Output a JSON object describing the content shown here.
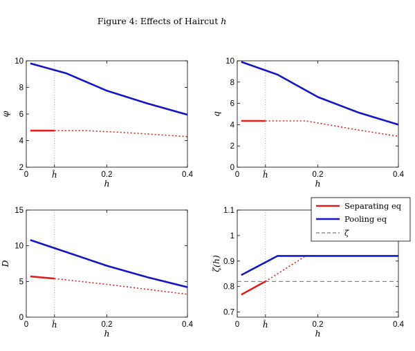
{
  "figure": {
    "title_prefix": "Figure 4: Effects of Haircut ",
    "title_var": "h"
  },
  "colors": {
    "red": "#e11e1e",
    "blue": "#1414c8",
    "dashed": "#555555",
    "dotted": "#888888",
    "axis": "#000000"
  },
  "legend": {
    "entries": [
      {
        "label": "Separating eq",
        "color": "#e11e1e",
        "style": "solid"
      },
      {
        "label": "Pooling eq",
        "color": "#1414c8",
        "style": "solid"
      },
      {
        "label": "− − ζ̄",
        "symbol": "ζ̄",
        "color": "#555555",
        "style": "dashed"
      }
    ]
  },
  "chart_data": [
    {
      "type": "line",
      "ylabel": "φ",
      "xlabel": "h",
      "xlim": [
        0,
        0.4
      ],
      "ylim": [
        2,
        10
      ],
      "xticks": [
        0,
        0.2,
        0.4
      ],
      "xticklabels": [
        "0",
        "0.2",
        "0.4"
      ],
      "hat_x": 0.07,
      "hat_label": "ĥ",
      "yticks": [
        2,
        4,
        6,
        8,
        10
      ],
      "yticklabels": [
        "2",
        "4",
        "6",
        "8",
        "10"
      ],
      "series": [
        {
          "name": "Pooling eq",
          "color": "#1414c8",
          "style": "solid",
          "x": [
            0.01,
            0.1,
            0.2,
            0.3,
            0.4
          ],
          "y": [
            9.8,
            9.05,
            7.75,
            6.8,
            5.95
          ]
        },
        {
          "name": "Separating eq",
          "color": "#e11e1e",
          "style": "solid",
          "x": [
            0.01,
            0.07
          ],
          "y": [
            4.75,
            4.75
          ]
        },
        {
          "name": "Separating eq (extension)",
          "color": "#e11e1e",
          "style": "dotted",
          "x": [
            0.07,
            0.15,
            0.25,
            0.4
          ],
          "y": [
            4.75,
            4.75,
            4.6,
            4.3
          ]
        }
      ]
    },
    {
      "type": "line",
      "ylabel": "q",
      "xlabel": "h",
      "xlim": [
        0,
        0.4
      ],
      "ylim": [
        0,
        10
      ],
      "xticks": [
        0,
        0.2,
        0.4
      ],
      "xticklabels": [
        "0",
        "0.2",
        "0.4"
      ],
      "hat_x": 0.07,
      "hat_label": "ĥ",
      "yticks": [
        0,
        2,
        4,
        6,
        8,
        10
      ],
      "yticklabels": [
        "0",
        "2",
        "4",
        "6",
        "8",
        "10"
      ],
      "series": [
        {
          "name": "Pooling eq",
          "color": "#1414c8",
          "style": "solid",
          "x": [
            0.01,
            0.1,
            0.2,
            0.3,
            0.4
          ],
          "y": [
            9.9,
            8.7,
            6.6,
            5.15,
            4.0
          ]
        },
        {
          "name": "Separating eq",
          "color": "#e11e1e",
          "style": "solid",
          "x": [
            0.01,
            0.07
          ],
          "y": [
            4.35,
            4.35
          ]
        },
        {
          "name": "Separating eq (extension)",
          "color": "#e11e1e",
          "style": "dotted",
          "x": [
            0.07,
            0.17,
            0.3,
            0.4
          ],
          "y": [
            4.35,
            4.35,
            3.5,
            2.9
          ]
        }
      ]
    },
    {
      "type": "line",
      "ylabel": "D",
      "xlabel": "h",
      "xlim": [
        0,
        0.4
      ],
      "ylim": [
        0,
        15
      ],
      "xticks": [
        0,
        0.2,
        0.4
      ],
      "xticklabels": [
        "0",
        "0.2",
        "0.4"
      ],
      "hat_x": 0.07,
      "hat_label": "ĥ",
      "yticks": [
        0,
        5,
        10,
        15
      ],
      "yticklabels": [
        "0",
        "5",
        "10",
        "15"
      ],
      "series": [
        {
          "name": "Pooling eq",
          "color": "#1414c8",
          "style": "solid",
          "x": [
            0.01,
            0.1,
            0.2,
            0.3,
            0.4
          ],
          "y": [
            10.8,
            9.1,
            7.2,
            5.6,
            4.2
          ]
        },
        {
          "name": "Separating eq",
          "color": "#e11e1e",
          "style": "solid",
          "x": [
            0.01,
            0.07
          ],
          "y": [
            5.7,
            5.4
          ]
        },
        {
          "name": "Separating eq (extension)",
          "color": "#e11e1e",
          "style": "dotted",
          "x": [
            0.07,
            0.2,
            0.3,
            0.4
          ],
          "y": [
            5.4,
            4.6,
            3.9,
            3.2
          ]
        }
      ]
    },
    {
      "type": "line",
      "ylabel": "ζ(h)",
      "xlabel": "h",
      "xlim": [
        0,
        0.4
      ],
      "ylim": [
        0.68,
        1.1
      ],
      "xticks": [
        0,
        0.2,
        0.4
      ],
      "xticklabels": [
        "0",
        "0.2",
        "0.4"
      ],
      "hat_x": 0.07,
      "hat_label": "ĥ",
      "yticks": [
        0.7,
        0.8,
        0.9,
        1.0,
        1.1
      ],
      "yticklabels": [
        "0.7",
        "0.8",
        "0.9",
        "1",
        "1.1"
      ],
      "hline": {
        "y": 0.82,
        "name": "ζ̄",
        "color": "#555555",
        "style": "dashed"
      },
      "series": [
        {
          "name": "Pooling eq",
          "color": "#1414c8",
          "style": "solid",
          "x": [
            0.01,
            0.1,
            0.4
          ],
          "y": [
            0.845,
            0.92,
            0.92
          ]
        },
        {
          "name": "Separating eq",
          "color": "#e11e1e",
          "style": "solid",
          "x": [
            0.01,
            0.07
          ],
          "y": [
            0.768,
            0.82
          ]
        },
        {
          "name": "Separating eq (extension)",
          "color": "#e11e1e",
          "style": "dotted",
          "x": [
            0.07,
            0.17
          ],
          "y": [
            0.82,
            0.92
          ]
        }
      ]
    }
  ]
}
